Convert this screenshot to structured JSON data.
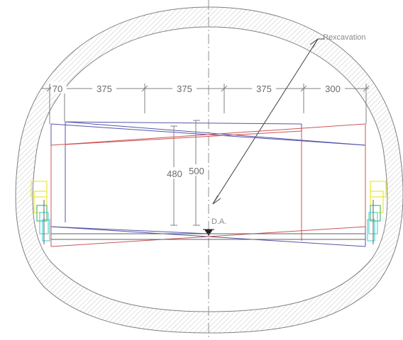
{
  "labels": {
    "radius": "Rexcavation",
    "datum": "D.A."
  },
  "dimensions": {
    "horizontal": [
      "70",
      "375",
      "375",
      "375",
      "300"
    ],
    "height_inner": "480",
    "height_outer": "500"
  },
  "colors": {
    "lining": "#808080",
    "hatch": "#c4c4c4",
    "blue": "#5555aa",
    "red": "#cc5555",
    "dim": "#808080",
    "yellow": "#e6e600",
    "cyan": "#33cccc",
    "green": "#33aa66"
  }
}
